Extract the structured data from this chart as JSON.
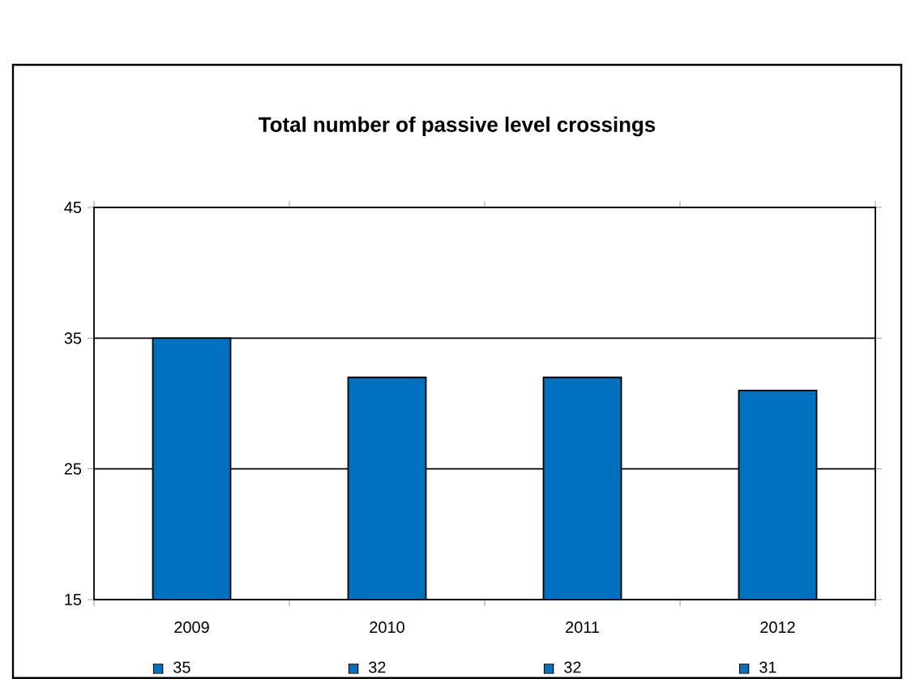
{
  "chart_data": {
    "type": "bar",
    "title": "Total number of passive level crossings",
    "categories": [
      "2009",
      "2010",
      "2011",
      "2012"
    ],
    "values": [
      35,
      32,
      32,
      31
    ],
    "color": "#0070c0",
    "ylim": [
      15,
      45
    ],
    "yticks": [
      15,
      25,
      35,
      45
    ],
    "grid": "y",
    "data_labels": true
  }
}
